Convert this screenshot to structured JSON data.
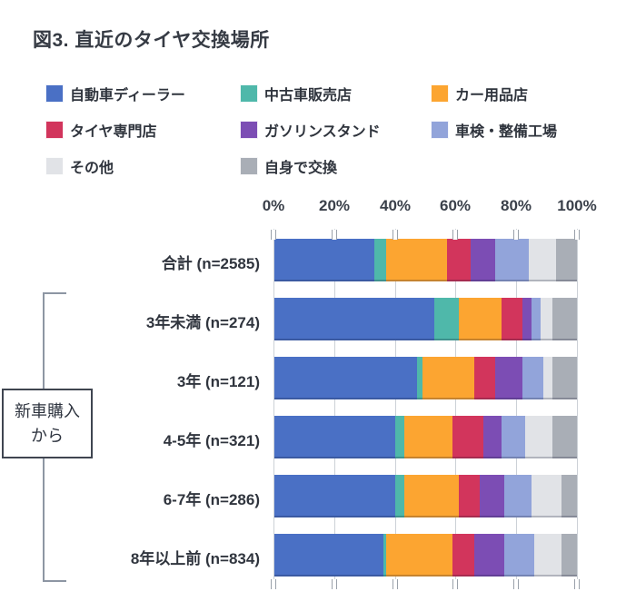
{
  "title": "図3. 直近のタイヤ交換場所",
  "group_label": {
    "line1": "新車購入",
    "line2": "から"
  },
  "chart_data": {
    "type": "bar",
    "stacked": true,
    "orientation": "horizontal",
    "title": "図3. 直近のタイヤ交換場所",
    "unit": "%",
    "xlim": [
      0,
      100
    ],
    "x_tick_labels": [
      "0%",
      "20%",
      "40%",
      "60%",
      "80%",
      "100%"
    ],
    "grid": true,
    "legend_position": "top",
    "categories": [
      "合計 (n=2585)",
      "3年未満 (n=274)",
      "3年 (n=121)",
      "4-5年 (n=321)",
      "6-7年 (n=286)",
      "8年以上前 (n=834)"
    ],
    "group_annotation": {
      "label": "新車購入から",
      "applies_to": [
        "3年未満 (n=274)",
        "3年 (n=121)",
        "4-5年 (n=321)",
        "6-7年 (n=286)",
        "8年以上前 (n=834)"
      ]
    },
    "series": [
      {
        "name": "自動車ディーラー",
        "color": "#4A70C5",
        "values": [
          33,
          53,
          47,
          40,
          40,
          36
        ]
      },
      {
        "name": "中古車販売店",
        "color": "#4FB8AA",
        "values": [
          4,
          8,
          2,
          3,
          3,
          1
        ]
      },
      {
        "name": "カー用品店",
        "color": "#FCA531",
        "values": [
          20,
          14,
          17,
          16,
          18,
          22
        ]
      },
      {
        "name": "タイヤ専門店",
        "color": "#D2355C",
        "values": [
          8,
          7,
          7,
          10,
          7,
          7
        ]
      },
      {
        "name": "ガソリンスタンド",
        "color": "#7C4DB4",
        "values": [
          8,
          3,
          9,
          6,
          8,
          10
        ]
      },
      {
        "name": "車検・整備工場",
        "color": "#92A4DA",
        "values": [
          11,
          3,
          7,
          8,
          9,
          10
        ]
      },
      {
        "name": "その他",
        "color": "#E1E3E7",
        "values": [
          9,
          4,
          3,
          9,
          10,
          9
        ]
      },
      {
        "name": "自身で交換",
        "color": "#A9AEB6",
        "values": [
          7,
          8,
          8,
          8,
          5,
          5
        ]
      }
    ]
  }
}
